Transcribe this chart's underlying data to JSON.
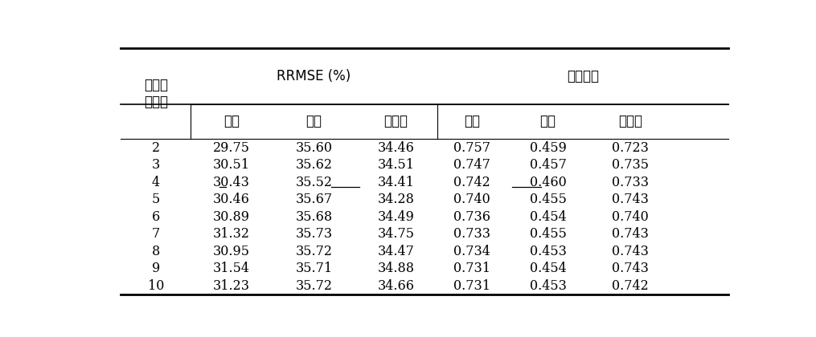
{
  "col_header_row1_left": "은닉층\n노드수",
  "col_header_rrmse": "RRMSE (%)",
  "col_header_corr": "상관계수",
  "subheaders": [
    "학습",
    "검증",
    "테스트",
    "학습",
    "검증",
    "테스트"
  ],
  "rows": [
    [
      "2",
      "29.75",
      "35.60",
      "34.46",
      "0.757",
      "0.459",
      "0.723"
    ],
    [
      "3",
      "30.51",
      "35.62",
      "34.51",
      "0.747",
      "0.457",
      "0.735"
    ],
    [
      "4",
      "30.43",
      "35.52",
      "34.41",
      "0.742",
      "0.460",
      "0.733"
    ],
    [
      "5",
      "30.46",
      "35.67",
      "34.28",
      "0.740",
      "0.455",
      "0.743"
    ],
    [
      "6",
      "30.89",
      "35.68",
      "34.49",
      "0.736",
      "0.454",
      "0.740"
    ],
    [
      "7",
      "31.32",
      "35.73",
      "34.75",
      "0.733",
      "0.455",
      "0.743"
    ],
    [
      "8",
      "30.95",
      "35.72",
      "34.47",
      "0.734",
      "0.453",
      "0.743"
    ],
    [
      "9",
      "31.54",
      "35.71",
      "34.88",
      "0.731",
      "0.454",
      "0.743"
    ],
    [
      "10",
      "31.23",
      "35.72",
      "34.66",
      "0.731",
      "0.453",
      "0.742"
    ]
  ],
  "underlined_row": 2,
  "underlined_cols_display": [
    0,
    2,
    5
  ],
  "background_color": "#ffffff",
  "text_color": "#000000",
  "font_size": 11.5,
  "header_font_size": 12
}
